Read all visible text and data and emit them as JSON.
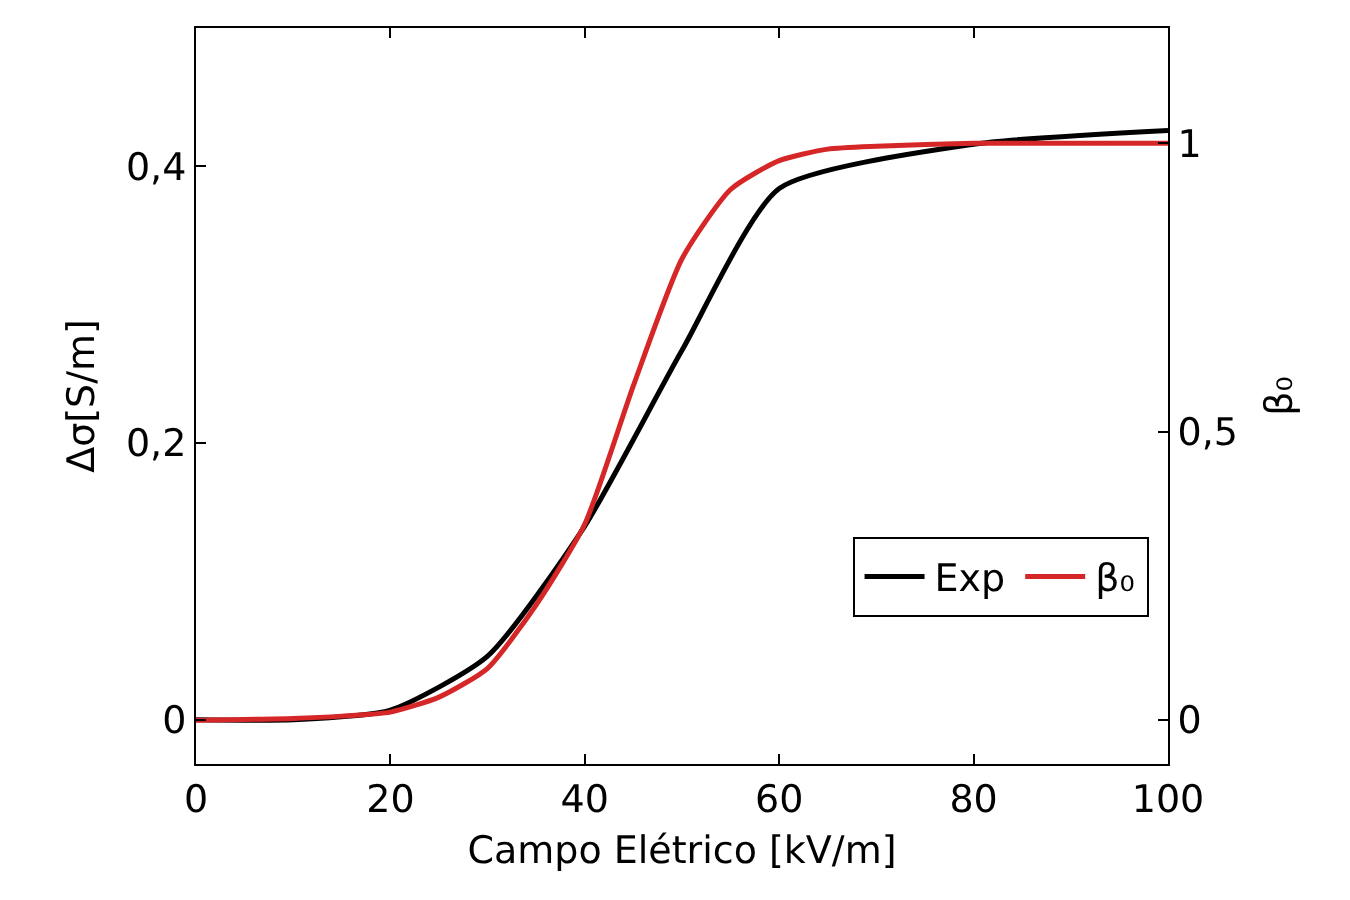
{
  "chart_data": {
    "type": "line",
    "xlabel": "Campo Elétrico [kV/m]",
    "ylabel": "Δσ[S/m]",
    "y2label": "β₀",
    "xlim": [
      0,
      100
    ],
    "xticks": [
      0,
      20,
      40,
      60,
      80,
      100
    ],
    "ylim": [
      -0.032,
      0.5
    ],
    "yticks": [
      0,
      {
        "value": 0.2,
        "label": "0,2"
      },
      {
        "value": 0.4,
        "label": "0,4"
      }
    ],
    "y2lim": [
      -0.076,
      1.2
    ],
    "y2ticks": [
      0,
      {
        "value": 0.5,
        "label": "0,5"
      },
      1
    ],
    "series": [
      {
        "name": "Exp",
        "color": "#000000",
        "x": [
          0,
          10,
          20,
          30,
          40,
          50,
          60,
          80,
          100
        ],
        "values": [
          0,
          0,
          0.007,
          0.046,
          0.14,
          0.267,
          0.384,
          0.416,
          0.426
        ]
      },
      {
        "name": "β₀",
        "color": "#d62728",
        "axis": "y2",
        "x": [
          0,
          10,
          15,
          20,
          25,
          30,
          35,
          40,
          45,
          50,
          55,
          60,
          65,
          70,
          80,
          90,
          100
        ],
        "values": [
          0,
          0.003,
          0.007,
          0.014,
          0.04,
          0.09,
          0.2,
          0.34,
          0.58,
          0.8,
          0.92,
          0.97,
          0.99,
          0.995,
          1,
          1,
          1
        ]
      }
    ],
    "legend": "bottom right",
    "grid": false,
    "marker": "none",
    "line_style": "solid"
  }
}
